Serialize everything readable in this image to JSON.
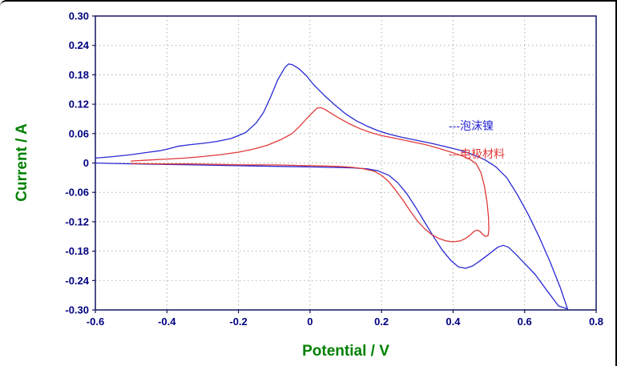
{
  "figure": {
    "x_axis_title": "Potential / V",
    "y_axis_title": "Current / A",
    "colors": {
      "axis_title": "#008000",
      "tick_label": "#000080",
      "plot_border": "#151560",
      "grid": "#a8b4a8",
      "background": "#ffffff",
      "outer_border": "#000000"
    }
  },
  "legend": {
    "items": [
      {
        "label": "---泡沫镍",
        "color": "#2929d4"
      },
      {
        "label": "---电极材料",
        "color": "#e03a3a"
      }
    ]
  },
  "chart_data": {
    "type": "line",
    "title": "",
    "xlabel": "Potential / V",
    "ylabel": "Current / A",
    "xlim": [
      -0.6,
      0.8
    ],
    "ylim": [
      -0.3,
      0.3
    ],
    "x_ticks": [
      -0.6,
      -0.4,
      -0.2,
      0,
      0.2,
      0.4,
      0.6,
      0.8
    ],
    "x_tick_labels": [
      "-0.6",
      "-0.4",
      "-0.2",
      "0",
      "0.2",
      "0.4",
      "0.6",
      "0.8"
    ],
    "y_ticks": [
      0.3,
      0.24,
      0.18,
      0.12,
      0.06,
      0,
      -0.06,
      -0.12,
      -0.18,
      -0.24,
      -0.3
    ],
    "y_tick_labels": [
      "0.30",
      "0.24",
      "0.18",
      "0.12",
      "0.06",
      "0",
      "-0.06",
      "-0.12",
      "-0.18",
      "-0.24",
      "-0.30"
    ],
    "grid": true,
    "grid_style": "dotted",
    "legend_position": "middle-right",
    "series": [
      {
        "name": "泡沫镍",
        "legend_label": "---泡沫镍",
        "color": "#2929d4",
        "points": [
          [
            -0.6,
            0.01
          ],
          [
            -0.55,
            0.013
          ],
          [
            -0.5,
            0.017
          ],
          [
            -0.45,
            0.022
          ],
          [
            -0.42,
            0.025
          ],
          [
            -0.4,
            0.028
          ],
          [
            -0.37,
            0.034
          ],
          [
            -0.34,
            0.037
          ],
          [
            -0.3,
            0.04
          ],
          [
            -0.26,
            0.044
          ],
          [
            -0.22,
            0.05
          ],
          [
            -0.18,
            0.062
          ],
          [
            -0.15,
            0.082
          ],
          [
            -0.13,
            0.103
          ],
          [
            -0.11,
            0.135
          ],
          [
            -0.09,
            0.17
          ],
          [
            -0.07,
            0.195
          ],
          [
            -0.06,
            0.202
          ],
          [
            -0.05,
            0.201
          ],
          [
            -0.03,
            0.192
          ],
          [
            -0.01,
            0.178
          ],
          [
            0.01,
            0.16
          ],
          [
            0.04,
            0.138
          ],
          [
            0.07,
            0.118
          ],
          [
            0.1,
            0.1
          ],
          [
            0.13,
            0.086
          ],
          [
            0.16,
            0.075
          ],
          [
            0.19,
            0.066
          ],
          [
            0.22,
            0.059
          ],
          [
            0.26,
            0.052
          ],
          [
            0.3,
            0.046
          ],
          [
            0.34,
            0.04
          ],
          [
            0.38,
            0.033
          ],
          [
            0.42,
            0.026
          ],
          [
            0.46,
            0.016
          ],
          [
            0.49,
            0.006
          ],
          [
            0.52,
            -0.008
          ],
          [
            0.55,
            -0.03
          ],
          [
            0.58,
            -0.065
          ],
          [
            0.61,
            -0.105
          ],
          [
            0.64,
            -0.15
          ],
          [
            0.67,
            -0.2
          ],
          [
            0.7,
            -0.255
          ],
          [
            0.72,
            -0.298
          ],
          [
            0.695,
            -0.292
          ],
          [
            0.66,
            -0.258
          ],
          [
            0.63,
            -0.228
          ],
          [
            0.6,
            -0.205
          ],
          [
            0.575,
            -0.186
          ],
          [
            0.555,
            -0.172
          ],
          [
            0.54,
            -0.168
          ],
          [
            0.525,
            -0.172
          ],
          [
            0.5,
            -0.186
          ],
          [
            0.475,
            -0.2
          ],
          [
            0.455,
            -0.21
          ],
          [
            0.435,
            -0.215
          ],
          [
            0.415,
            -0.212
          ],
          [
            0.395,
            -0.2
          ],
          [
            0.37,
            -0.178
          ],
          [
            0.345,
            -0.15
          ],
          [
            0.32,
            -0.12
          ],
          [
            0.295,
            -0.09
          ],
          [
            0.27,
            -0.062
          ],
          [
            0.245,
            -0.04
          ],
          [
            0.22,
            -0.025
          ],
          [
            0.19,
            -0.016
          ],
          [
            0.16,
            -0.012
          ],
          [
            0.12,
            -0.01
          ],
          [
            0.06,
            -0.009
          ],
          [
            0.0,
            -0.008
          ],
          [
            -0.08,
            -0.007
          ],
          [
            -0.16,
            -0.006
          ],
          [
            -0.24,
            -0.005
          ],
          [
            -0.32,
            -0.004
          ],
          [
            -0.4,
            -0.003
          ],
          [
            -0.48,
            -0.002
          ],
          [
            -0.55,
            -0.001
          ],
          [
            -0.6,
            0.0
          ]
        ]
      },
      {
        "name": "电极材料",
        "legend_label": "---电极材料",
        "color": "#e03a3a",
        "points": [
          [
            -0.5,
            0.004
          ],
          [
            -0.45,
            0.006
          ],
          [
            -0.4,
            0.008
          ],
          [
            -0.35,
            0.01
          ],
          [
            -0.3,
            0.013
          ],
          [
            -0.25,
            0.017
          ],
          [
            -0.2,
            0.022
          ],
          [
            -0.16,
            0.028
          ],
          [
            -0.12,
            0.036
          ],
          [
            -0.08,
            0.048
          ],
          [
            -0.05,
            0.06
          ],
          [
            -0.03,
            0.074
          ],
          [
            -0.01,
            0.09
          ],
          [
            0.01,
            0.105
          ],
          [
            0.02,
            0.112
          ],
          [
            0.03,
            0.113
          ],
          [
            0.04,
            0.11
          ],
          [
            0.06,
            0.101
          ],
          [
            0.08,
            0.092
          ],
          [
            0.11,
            0.08
          ],
          [
            0.14,
            0.07
          ],
          [
            0.17,
            0.062
          ],
          [
            0.2,
            0.056
          ],
          [
            0.24,
            0.05
          ],
          [
            0.28,
            0.044
          ],
          [
            0.32,
            0.038
          ],
          [
            0.36,
            0.03
          ],
          [
            0.4,
            0.021
          ],
          [
            0.43,
            0.013
          ],
          [
            0.45,
            0.006
          ],
          [
            0.465,
            -0.002
          ],
          [
            0.478,
            -0.02
          ],
          [
            0.488,
            -0.048
          ],
          [
            0.495,
            -0.08
          ],
          [
            0.499,
            -0.11
          ],
          [
            0.5,
            -0.135
          ],
          [
            0.498,
            -0.148
          ],
          [
            0.49,
            -0.15
          ],
          [
            0.482,
            -0.145
          ],
          [
            0.474,
            -0.139
          ],
          [
            0.466,
            -0.137
          ],
          [
            0.458,
            -0.14
          ],
          [
            0.448,
            -0.147
          ],
          [
            0.435,
            -0.154
          ],
          [
            0.42,
            -0.159
          ],
          [
            0.4,
            -0.161
          ],
          [
            0.38,
            -0.159
          ],
          [
            0.36,
            -0.154
          ],
          [
            0.34,
            -0.146
          ],
          [
            0.32,
            -0.134
          ],
          [
            0.3,
            -0.118
          ],
          [
            0.28,
            -0.098
          ],
          [
            0.26,
            -0.076
          ],
          [
            0.24,
            -0.056
          ],
          [
            0.22,
            -0.038
          ],
          [
            0.2,
            -0.025
          ],
          [
            0.18,
            -0.017
          ],
          [
            0.15,
            -0.012
          ],
          [
            0.12,
            -0.009
          ],
          [
            0.08,
            -0.007
          ],
          [
            0.03,
            -0.006
          ],
          [
            -0.03,
            -0.005
          ],
          [
            -0.1,
            -0.004
          ],
          [
            -0.18,
            -0.004
          ],
          [
            -0.26,
            -0.003
          ],
          [
            -0.34,
            -0.002
          ],
          [
            -0.42,
            -0.002
          ],
          [
            -0.5,
            -0.001
          ]
        ]
      }
    ]
  }
}
